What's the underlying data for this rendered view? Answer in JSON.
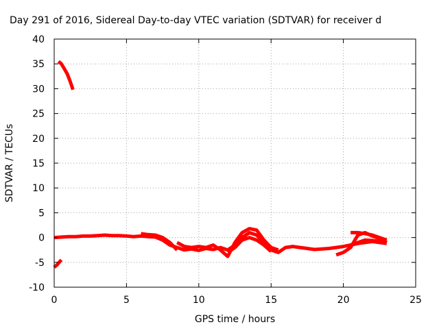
{
  "chart_data": {
    "type": "line",
    "title": "Day 291 of 2016, Sidereal Day-to-day VTEC variation (SDTVAR) for receiver d",
    "xlabel": "GPS time / hours",
    "ylabel": "SDTVAR / TECUs",
    "xlim": [
      0,
      25
    ],
    "ylim": [
      -10,
      40
    ],
    "xticks": [
      "0",
      "5",
      "10",
      "15",
      "20",
      "25"
    ],
    "yticks": [
      "-10",
      "-5",
      "0",
      "5",
      "10",
      "15",
      "20",
      "25",
      "30",
      "35",
      "40"
    ],
    "grid": true,
    "series": [
      {
        "color": "#ff0000",
        "segments": [
          {
            "x": [
              0.3,
              0.5,
              0.7,
              0.9,
              1.1,
              1.3
            ],
            "y": [
              35.5,
              35.0,
              34.0,
              33.0,
              31.5,
              29.8
            ]
          },
          {
            "x": [
              0.0,
              0.2,
              0.4,
              0.5
            ],
            "y": [
              -6.0,
              -5.5,
              -4.8,
              -4.5
            ]
          },
          {
            "x": [
              0.0,
              0.5,
              1.0,
              1.5,
              2.0,
              2.5,
              3.0,
              3.5,
              4.0,
              4.5,
              5.0,
              5.5,
              6.0,
              6.5,
              7.0,
              7.5,
              8.0,
              8.5,
              9.0,
              9.5,
              10.0,
              10.5,
              11.0,
              11.5,
              12.0,
              12.5,
              13.0,
              13.5,
              14.0,
              14.5,
              15.0,
              15.5,
              16.0,
              16.5,
              17.0,
              17.5,
              18.0,
              18.5,
              19.0,
              19.5,
              20.0,
              20.5,
              21.0,
              21.5,
              22.0,
              22.5,
              23.0
            ],
            "y": [
              0.0,
              0.1,
              0.2,
              0.2,
              0.3,
              0.3,
              0.4,
              0.5,
              0.4,
              0.4,
              0.3,
              0.2,
              0.3,
              0.2,
              0.1,
              -0.5,
              -1.5,
              -2.0,
              -2.5,
              -2.3,
              -2.6,
              -2.2,
              -2.4,
              -2.0,
              -2.5,
              -1.5,
              0.0,
              1.0,
              0.5,
              -1.0,
              -2.5,
              -3.0,
              -2.0,
              -1.8,
              -2.0,
              -2.2,
              -2.4,
              -2.3,
              -2.2,
              -2.0,
              -1.8,
              -1.5,
              -1.0,
              -0.5,
              -0.6,
              -0.8,
              -1.0
            ]
          },
          {
            "x": [
              6.0,
              6.5,
              7.0,
              7.5,
              8.0,
              8.5
            ],
            "y": [
              0.8,
              0.6,
              0.5,
              0.0,
              -1.0,
              -2.5
            ]
          },
          {
            "x": [
              8.5,
              9.0,
              9.5,
              10.0,
              10.5,
              11.0,
              11.5,
              12.0,
              12.5,
              13.0,
              13.5,
              14.0,
              14.5,
              15.0,
              15.5
            ],
            "y": [
              -1.0,
              -1.8,
              -2.0,
              -1.8,
              -2.0,
              -1.5,
              -2.5,
              -3.8,
              -1.0,
              1.0,
              1.8,
              1.5,
              -0.5,
              -2.0,
              -2.5
            ]
          },
          {
            "x": [
              12.0,
              12.5,
              13.0,
              13.5,
              14.0,
              14.5,
              15.0
            ],
            "y": [
              -3.0,
              -2.0,
              -0.5,
              0.0,
              -0.5,
              -1.5,
              -2.8
            ]
          },
          {
            "x": [
              19.5,
              20.0,
              20.5,
              21.0,
              21.5,
              22.0,
              22.5,
              23.0
            ],
            "y": [
              -3.5,
              -3.0,
              -2.0,
              0.5,
              1.0,
              0.3,
              -0.2,
              -1.0
            ]
          },
          {
            "x": [
              20.5,
              21.0,
              21.5,
              22.0,
              22.5,
              23.0
            ],
            "y": [
              1.0,
              1.0,
              0.8,
              0.5,
              0.0,
              -0.5
            ]
          },
          {
            "x": [
              20.5,
              21.0,
              21.5,
              22.0,
              22.5,
              23.0
            ],
            "y": [
              -1.5,
              -1.2,
              -1.0,
              -0.8,
              -1.0,
              -1.2
            ]
          }
        ]
      }
    ]
  }
}
